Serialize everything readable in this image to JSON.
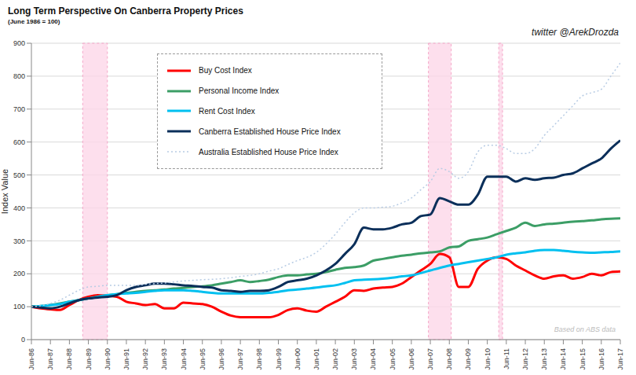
{
  "chart_data": {
    "type": "line",
    "title": "Long Term Perspective On Canberra Property Prices",
    "subtitle": "(June 1986 = 100)",
    "annotations": [
      "twitter @ArekDrozda",
      "Based on ABS data"
    ],
    "y_label": "Index Value",
    "x": [
      1986.5,
      1987.0,
      1987.5,
      1988.0,
      1988.5,
      1989.0,
      1989.5,
      1990.0,
      1990.5,
      1991.0,
      1991.5,
      1992.0,
      1992.5,
      1993.0,
      1993.5,
      1994.0,
      1994.5,
      1995.0,
      1995.5,
      1996.0,
      1996.5,
      1997.0,
      1997.5,
      1998.0,
      1998.5,
      1999.0,
      1999.5,
      2000.0,
      2000.5,
      2001.0,
      2001.5,
      2002.0,
      2002.5,
      2003.0,
      2003.5,
      2004.0,
      2004.5,
      2005.0,
      2005.5,
      2006.0,
      2006.5,
      2007.0,
      2007.5,
      2008.0,
      2008.5,
      2009.0,
      2009.5,
      2010.0,
      2010.5,
      2011.0,
      2011.5,
      2012.0,
      2012.5,
      2013.0,
      2013.5,
      2014.0,
      2014.5,
      2015.0,
      2015.5,
      2016.0,
      2016.5,
      2017.0,
      2017.5
    ],
    "xlim": [
      1986.5,
      2017.5
    ],
    "xticks": [
      {
        "value": 1986.5,
        "label": "Jun-86"
      },
      {
        "value": 1987.5,
        "label": "Jun-87"
      },
      {
        "value": 1988.5,
        "label": "Jun-88"
      },
      {
        "value": 1989.5,
        "label": "Jun-89"
      },
      {
        "value": 1990.5,
        "label": "Jun-90"
      },
      {
        "value": 1991.5,
        "label": "Jun-91"
      },
      {
        "value": 1992.5,
        "label": "Jun-92"
      },
      {
        "value": 1993.5,
        "label": "Jun-93"
      },
      {
        "value": 1994.5,
        "label": "Jun-94"
      },
      {
        "value": 1995.5,
        "label": "Jun-95"
      },
      {
        "value": 1996.5,
        "label": "Jun-96"
      },
      {
        "value": 1997.5,
        "label": "Jun-97"
      },
      {
        "value": 1998.5,
        "label": "Jun-98"
      },
      {
        "value": 1999.5,
        "label": "Jun-99"
      },
      {
        "value": 2000.5,
        "label": "Jun-00"
      },
      {
        "value": 2001.5,
        "label": "Jun-01"
      },
      {
        "value": 2002.5,
        "label": "Jun-02"
      },
      {
        "value": 2003.5,
        "label": "Jun-03"
      },
      {
        "value": 2004.5,
        "label": "Jun-04"
      },
      {
        "value": 2005.5,
        "label": "Jun-05"
      },
      {
        "value": 2006.5,
        "label": "Jun-06"
      },
      {
        "value": 2007.5,
        "label": "Jun-07"
      },
      {
        "value": 2008.5,
        "label": "Jun-08"
      },
      {
        "value": 2009.5,
        "label": "Jun-09"
      },
      {
        "value": 2010.5,
        "label": "Jun-10"
      },
      {
        "value": 2011.5,
        "label": "Jun-11"
      },
      {
        "value": 2012.5,
        "label": "Jun-12"
      },
      {
        "value": 2013.5,
        "label": "Jun-13"
      },
      {
        "value": 2014.5,
        "label": "Jun-14"
      },
      {
        "value": 2015.5,
        "label": "Jun-15"
      },
      {
        "value": 2016.5,
        "label": "Jun-16"
      },
      {
        "value": 2017.5,
        "label": "Jun-17"
      }
    ],
    "ylim": [
      0,
      900
    ],
    "yticks": [
      0,
      100,
      200,
      300,
      400,
      500,
      600,
      700,
      800,
      900
    ],
    "grid": true,
    "legend": "upper left",
    "shaded_periods": [
      [
        1989.2,
        1990.5
      ],
      [
        2007.4,
        2008.6
      ],
      [
        2011.1,
        2011.3
      ]
    ],
    "series": [
      {
        "name": "Buy Cost Index",
        "color": "#ff0000",
        "line_style": "solid",
        "values": [
          100,
          95,
          92,
          90,
          105,
          120,
          130,
          135,
          133,
          130,
          115,
          110,
          105,
          108,
          95,
          95,
          112,
          110,
          108,
          100,
          85,
          73,
          68,
          68,
          68,
          68,
          75,
          90,
          95,
          88,
          85,
          100,
          115,
          130,
          150,
          148,
          155,
          158,
          160,
          170,
          190,
          210,
          230,
          260,
          250,
          160,
          160,
          215,
          240,
          250,
          245,
          225,
          210,
          195,
          185,
          192,
          195,
          185,
          190,
          200,
          195,
          205,
          207
        ]
      },
      {
        "name": "Personal Income Index",
        "color": "#3c9e66",
        "line_style": "solid",
        "values": [
          100,
          102,
          105,
          110,
          115,
          120,
          125,
          130,
          135,
          138,
          142,
          145,
          148,
          150,
          152,
          155,
          157,
          160,
          162,
          165,
          170,
          175,
          180,
          175,
          178,
          182,
          190,
          195,
          195,
          198,
          200,
          205,
          212,
          218,
          220,
          225,
          240,
          245,
          250,
          255,
          258,
          262,
          265,
          268,
          280,
          283,
          300,
          305,
          310,
          320,
          330,
          340,
          355,
          345,
          350,
          352,
          355,
          358,
          360,
          362,
          365,
          367,
          368
        ]
      },
      {
        "name": "Rent Cost Index",
        "color": "#00c0f0",
        "line_style": "solid",
        "values": [
          100,
          102,
          105,
          108,
          115,
          120,
          125,
          130,
          135,
          138,
          140,
          142,
          145,
          148,
          150,
          150,
          150,
          148,
          145,
          142,
          140,
          140,
          140,
          140,
          140,
          142,
          145,
          150,
          152,
          155,
          158,
          162,
          165,
          172,
          180,
          182,
          183,
          185,
          188,
          192,
          195,
          202,
          210,
          218,
          225,
          230,
          235,
          240,
          245,
          250,
          258,
          262,
          265,
          270,
          272,
          272,
          270,
          267,
          265,
          264,
          265,
          266,
          268
        ]
      },
      {
        "name": "Canberra Established House Price Index",
        "color": "#0b2f5a",
        "line_style": "solid",
        "values": [
          100,
          97,
          95,
          100,
          110,
          120,
          125,
          128,
          130,
          135,
          150,
          160,
          165,
          170,
          170,
          168,
          165,
          163,
          160,
          158,
          150,
          148,
          145,
          148,
          148,
          150,
          160,
          175,
          180,
          185,
          195,
          210,
          230,
          260,
          290,
          340,
          335,
          335,
          340,
          350,
          355,
          375,
          380,
          430,
          420,
          410,
          410,
          440,
          495,
          495,
          495,
          480,
          490,
          485,
          490,
          492,
          500,
          505,
          520,
          535,
          550,
          580,
          605
        ]
      },
      {
        "name": "Australia Established House Price Index",
        "color": "#b8cce4",
        "line_style": "dotted",
        "values": [
          100,
          103,
          110,
          120,
          135,
          150,
          160,
          162,
          165,
          165,
          165,
          165,
          168,
          170,
          172,
          175,
          178,
          180,
          182,
          183,
          185,
          188,
          192,
          195,
          200,
          208,
          215,
          228,
          240,
          250,
          265,
          290,
          320,
          355,
          385,
          400,
          400,
          402,
          405,
          415,
          430,
          455,
          480,
          520,
          510,
          490,
          510,
          570,
          590,
          590,
          580,
          565,
          565,
          580,
          620,
          650,
          680,
          710,
          740,
          750,
          760,
          800,
          840
        ]
      }
    ]
  }
}
